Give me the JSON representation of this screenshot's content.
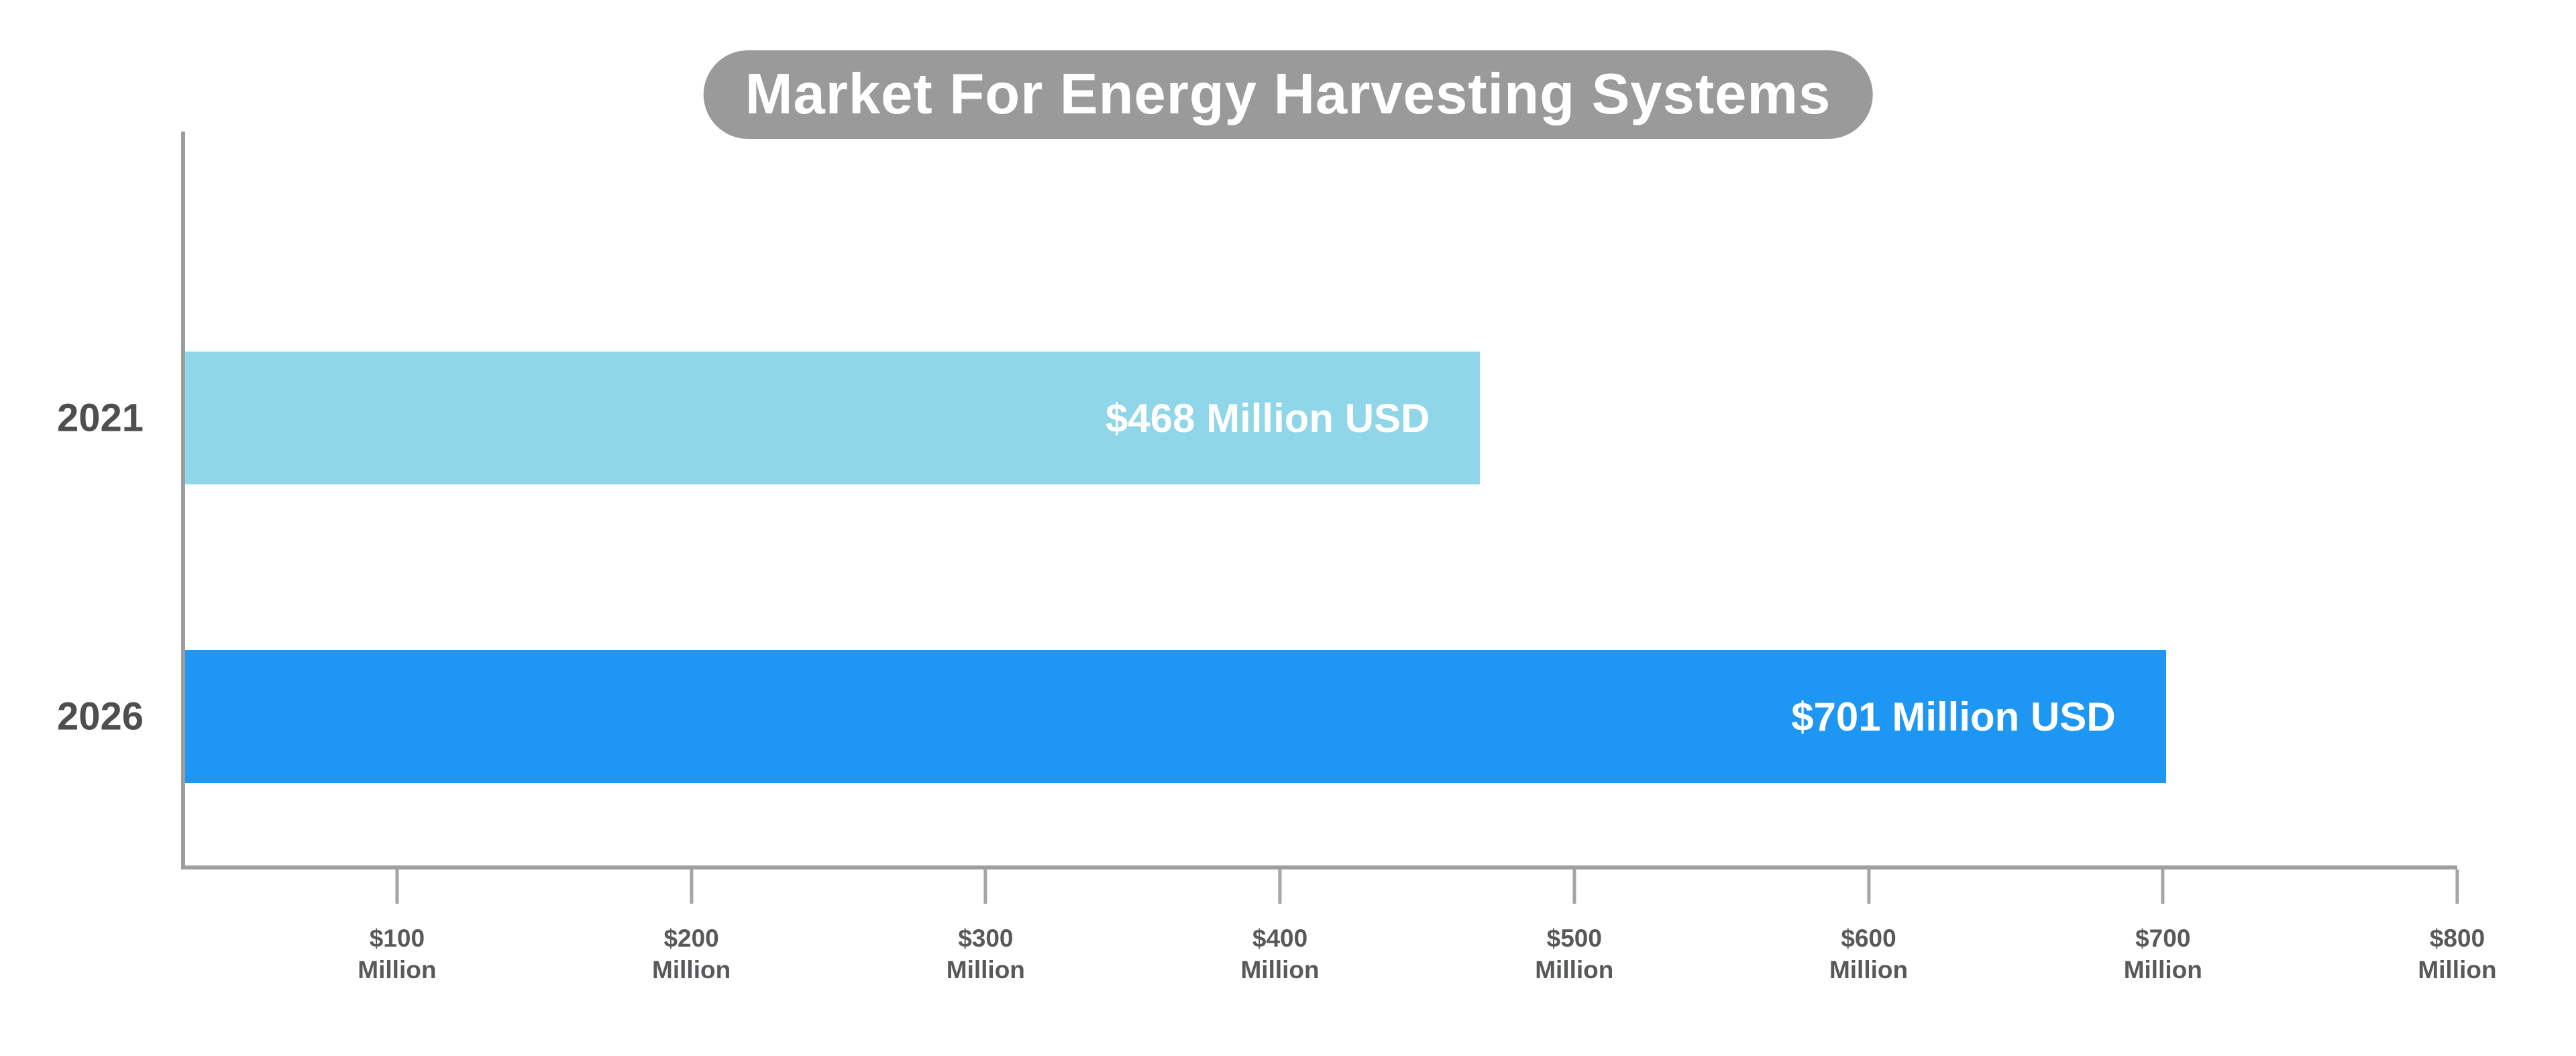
{
  "chart_data": {
    "type": "bar",
    "orientation": "horizontal",
    "title": "Market For Energy Harvesting Systems",
    "categories": [
      "2021",
      "2026"
    ],
    "values": [
      468,
      701
    ],
    "rows": [
      {
        "year": "2021",
        "value": 468,
        "label": "$468 Million USD",
        "color": "#8FD6E8"
      },
      {
        "year": "2026",
        "value": 701,
        "label": "$701 Million USD",
        "color": "#1E96F3"
      }
    ],
    "x_axis": {
      "min": 28,
      "max": 800,
      "tick_interval": 100,
      "ticks": [
        {
          "value": 100,
          "line1": "$100",
          "line2": "Million"
        },
        {
          "value": 200,
          "line1": "$200",
          "line2": "Million"
        },
        {
          "value": 300,
          "line1": "$300",
          "line2": "Million"
        },
        {
          "value": 400,
          "line1": "$400",
          "line2": "Million"
        },
        {
          "value": 500,
          "line1": "$500",
          "line2": "Million"
        },
        {
          "value": 600,
          "line1": "$600",
          "line2": "Million"
        },
        {
          "value": 700,
          "line1": "$700",
          "line2": "Million"
        },
        {
          "value": 800,
          "line1": "$800",
          "line2": "Million"
        }
      ]
    },
    "grid": false,
    "legend": false,
    "colors": {
      "title_bg": "#9A9A9A",
      "title_text": "#FFFFFF",
      "axis": "#9E9E9E",
      "tick_mark": "#A5A5A5",
      "tick_label_text": "#58595B",
      "category_label_text": "#4D4E50",
      "bar_label_text": "#FFFFFF",
      "background": "#FFFFFF"
    }
  }
}
